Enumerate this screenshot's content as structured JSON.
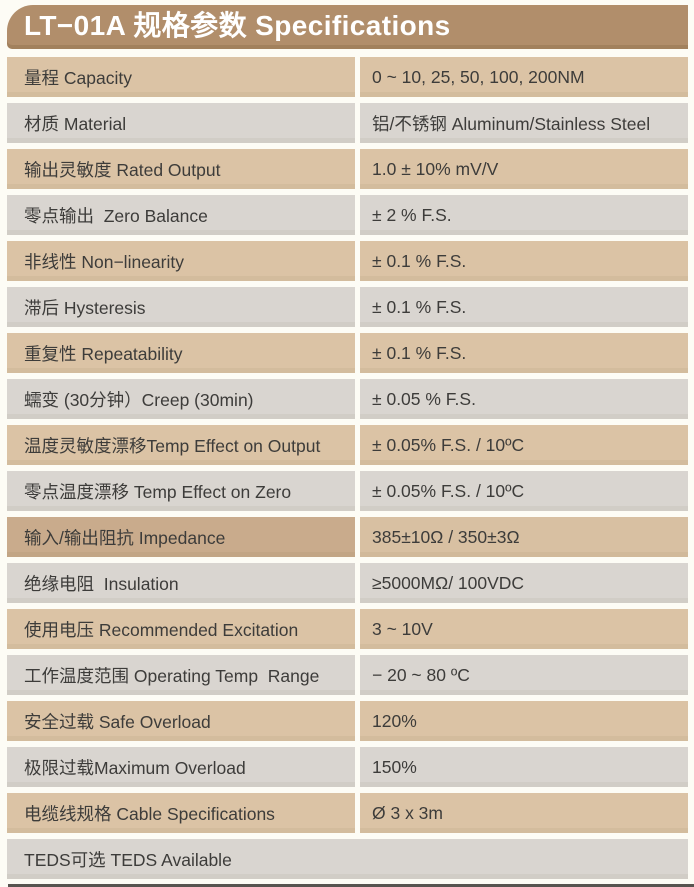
{
  "header": {
    "title": "LT−01A 规格参数 Specifications"
  },
  "table": {
    "rows": [
      {
        "label": "量程 Capacity",
        "value": "0 ~ 10, 25, 50, 100, 200NM",
        "tone": "tan"
      },
      {
        "label": "材质 Material",
        "value": "铝/不锈钢 Aluminum/Stainless Steel",
        "tone": "gray"
      },
      {
        "label": "输出灵敏度 Rated Output",
        "value": "1.0 ± 10% mV/V",
        "tone": "tan"
      },
      {
        "label": "零点输出  Zero Balance",
        "value": "± 2 % F.S.",
        "tone": "gray"
      },
      {
        "label": "非线性 Non−linearity",
        "value": "± 0.1 % F.S.",
        "tone": "tan"
      },
      {
        "label": "滞后 Hysteresis",
        "value": "± 0.1 % F.S.",
        "tone": "gray"
      },
      {
        "label": "重复性 Repeatability",
        "value": "± 0.1 % F.S.",
        "tone": "tan"
      },
      {
        "label": "蠕变 (30分钟）Creep (30min)",
        "value": "± 0.05 % F.S.",
        "tone": "gray"
      },
      {
        "label": "温度灵敏度漂移Temp Effect on Output",
        "value": "± 0.05% F.S. / 10ºC",
        "tone": "tan"
      },
      {
        "label": "零点温度漂移 Temp Effect on Zero",
        "value": "± 0.05% F.S. / 10ºC",
        "tone": "gray"
      },
      {
        "label": "输入/输出阻抗 Impedance",
        "value": "385±10Ω / 350±3Ω",
        "tone": "tan-dark"
      },
      {
        "label": "绝缘电阻  Insulation",
        "value": "≥5000MΩ/ 100VDC",
        "tone": "gray"
      },
      {
        "label": "使用电压 Recommended Excitation",
        "value": "3 ~ 10V",
        "tone": "tan"
      },
      {
        "label": "工作温度范围 Operating Temp  Range",
        "value": "− 20 ~ 80 ºC",
        "tone": "gray"
      },
      {
        "label": "安全过载 Safe Overload",
        "value": "120%",
        "tone": "tan"
      },
      {
        "label": "极限过载Maximum Overload",
        "value": "150%",
        "tone": "gray"
      },
      {
        "label": "电缆线规格 Cable Specifications",
        "value": "Ø 3 x 3m",
        "tone": "tan"
      },
      {
        "label": "TEDS可选 TEDS Available",
        "value": "",
        "tone": "gray",
        "full_width": true
      }
    ]
  },
  "colors": {
    "header_bg": "#b18e6b",
    "header_text": "#ffffff",
    "row_tan": "#dbc3a5",
    "row_gray": "#d9d5d0",
    "row_tan_dark_label": "#c9ab8c",
    "row_tan_dark_value": "#d8c0a2",
    "text": "#3d3c3a",
    "page_bg": "#fdfcf5",
    "bottom_rule": "#57544f"
  }
}
